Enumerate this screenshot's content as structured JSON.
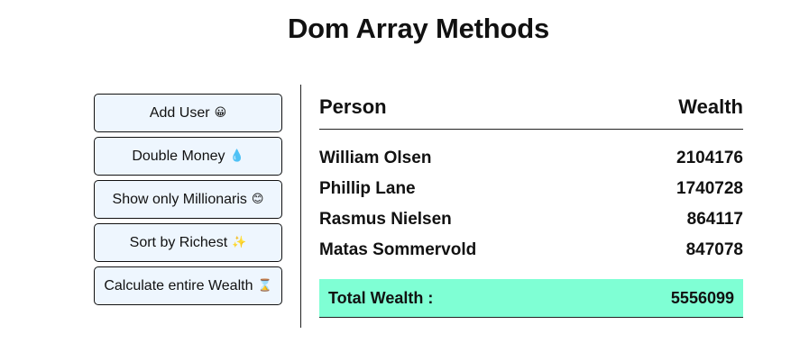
{
  "page": {
    "title": "Dom Array Methods"
  },
  "actions": [
    {
      "label": "Add User",
      "emoji": "😀"
    },
    {
      "label": "Double Money",
      "emoji": "💧"
    },
    {
      "label": "Show only Millionaris",
      "emoji": "😊"
    },
    {
      "label": "Sort by Richest",
      "emoji": "✨"
    },
    {
      "label": "Calculate entire Wealth",
      "emoji": "⌛"
    }
  ],
  "table": {
    "headers": {
      "person": "Person",
      "wealth": "Wealth"
    },
    "rows": [
      {
        "name": "William Olsen",
        "wealth": "2104176"
      },
      {
        "name": "Phillip Lane",
        "wealth": "1740728"
      },
      {
        "name": "Rasmus Nielsen",
        "wealth": "864117"
      },
      {
        "name": "Matas Sommervold",
        "wealth": "847078"
      }
    ],
    "total": {
      "label": "Total Wealth :",
      "value": "5556099"
    }
  },
  "colors": {
    "button_background": "#eef6fe",
    "total_background": "#7fffd4"
  }
}
